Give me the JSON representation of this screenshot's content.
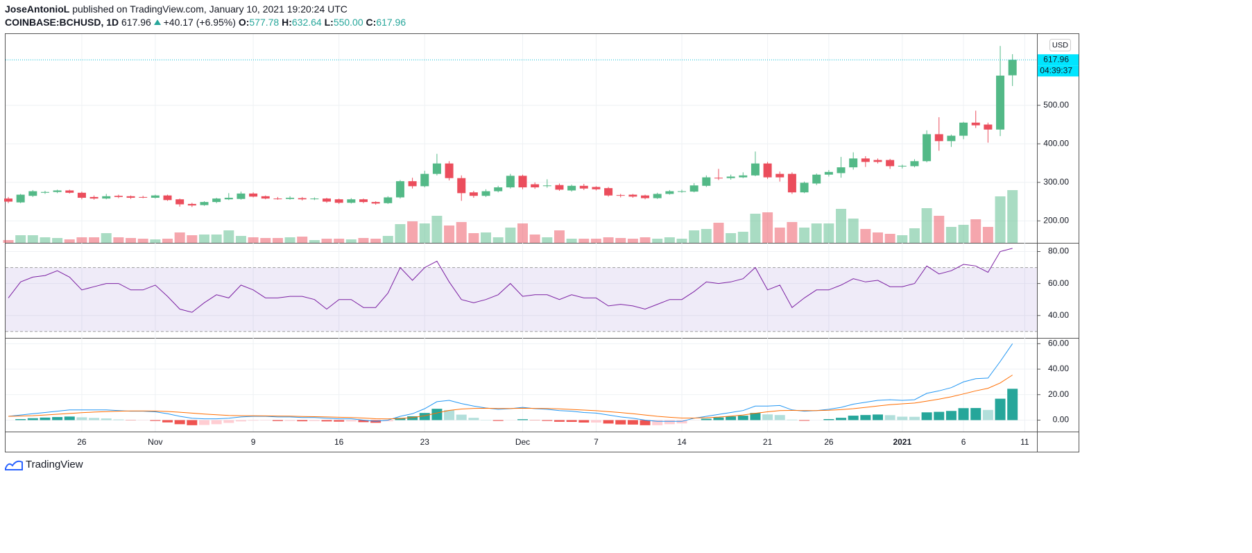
{
  "header": {
    "author": "JoseAntonioL",
    "published": "published on TradingView.com, January 10, 2021 19:20:24 UTC",
    "symbol": "COINBASE:BCHUSD, 1D",
    "last": "617.96",
    "change": "+40.17 (+6.95%)",
    "ohlc": [
      {
        "label": "O:",
        "value": "577.78"
      },
      {
        "label": "H:",
        "value": "632.64"
      },
      {
        "label": "L:",
        "value": "550.00"
      },
      {
        "label": "C:",
        "value": "617.96"
      }
    ]
  },
  "footer": "TradingView",
  "chart_data": [
    {
      "type": "candlestick",
      "currency": "USD",
      "last_label": "617.96",
      "countdown": "04:39:37",
      "up_color": "#53b987",
      "down_color": "#eb4d5c",
      "grid": true,
      "x": [
        "2020-10-20",
        "2020-10-21",
        "2020-10-22",
        "2020-10-23",
        "2020-10-24",
        "2020-10-25",
        "2020-10-26",
        "2020-10-27",
        "2020-10-28",
        "2020-10-29",
        "2020-10-30",
        "2020-10-31",
        "2020-11-01",
        "2020-11-02",
        "2020-11-03",
        "2020-11-04",
        "2020-11-05",
        "2020-11-06",
        "2020-11-07",
        "2020-11-08",
        "2020-11-09",
        "2020-11-10",
        "2020-11-11",
        "2020-11-12",
        "2020-11-13",
        "2020-11-14",
        "2020-11-15",
        "2020-11-16",
        "2020-11-17",
        "2020-11-18",
        "2020-11-19",
        "2020-11-20",
        "2020-11-21",
        "2020-11-22",
        "2020-11-23",
        "2020-11-24",
        "2020-11-25",
        "2020-11-26",
        "2020-11-27",
        "2020-11-28",
        "2020-11-29",
        "2020-11-30",
        "2020-12-01",
        "2020-12-02",
        "2020-12-03",
        "2020-12-04",
        "2020-12-05",
        "2020-12-06",
        "2020-12-07",
        "2020-12-08",
        "2020-12-09",
        "2020-12-10",
        "2020-12-11",
        "2020-12-12",
        "2020-12-13",
        "2020-12-14",
        "2020-12-15",
        "2020-12-16",
        "2020-12-17",
        "2020-12-18",
        "2020-12-19",
        "2020-12-20",
        "2020-12-21",
        "2020-12-22",
        "2020-12-23",
        "2020-12-24",
        "2020-12-25",
        "2020-12-26",
        "2020-12-27",
        "2020-12-28",
        "2020-12-29",
        "2020-12-30",
        "2020-12-31",
        "2021-01-01",
        "2021-01-02",
        "2021-01-03",
        "2021-01-04",
        "2021-01-05",
        "2021-01-06",
        "2021-01-07",
        "2021-01-08",
        "2021-01-09",
        "2021-01-10"
      ],
      "open": [
        258,
        248,
        265,
        273,
        275,
        279,
        273,
        262,
        258,
        265,
        264,
        262,
        260,
        266,
        256,
        244,
        241,
        249,
        256,
        257,
        271,
        264,
        258,
        257,
        259,
        257,
        258,
        256,
        247,
        256,
        249,
        246,
        261,
        303,
        290,
        322,
        349,
        311,
        274,
        265,
        277,
        287,
        317,
        295,
        291,
        293,
        279,
        291,
        288,
        285,
        267,
        268,
        266,
        259,
        270,
        277,
        276,
        291,
        312,
        311,
        313,
        318,
        349,
        322,
        322,
        274,
        297,
        320,
        324,
        339,
        362,
        358,
        358,
        342,
        342,
        355,
        425,
        407,
        421,
        455,
        450,
        437,
        577.78
      ],
      "high": [
        262,
        270,
        280,
        278,
        281,
        281,
        276,
        266,
        270,
        268,
        266,
        265,
        268,
        268,
        258,
        247,
        251,
        260,
        272,
        276,
        274,
        266,
        262,
        264,
        262,
        261,
        260,
        258,
        259,
        258,
        251,
        264,
        306,
        312,
        330,
        374,
        355,
        318,
        278,
        282,
        291,
        322,
        320,
        300,
        308,
        297,
        294,
        296,
        290,
        288,
        270,
        270,
        268,
        273,
        280,
        281,
        298,
        318,
        335,
        320,
        326,
        380,
        353,
        328,
        326,
        302,
        323,
        332,
        366,
        378,
        368,
        362,
        361,
        346,
        360,
        435,
        469,
        424,
        457,
        486,
        455,
        654,
        632.64
      ],
      "low": [
        246,
        246,
        262,
        270,
        272,
        271,
        256,
        255,
        256,
        259,
        257,
        259,
        258,
        252,
        237,
        236,
        239,
        246,
        254,
        255,
        261,
        256,
        255,
        255,
        253,
        254,
        247,
        244,
        245,
        246,
        242,
        244,
        258,
        284,
        287,
        318,
        305,
        252,
        260,
        262,
        274,
        284,
        282,
        283,
        286,
        278,
        276,
        280,
        279,
        263,
        261,
        260,
        256,
        257,
        268,
        273,
        274,
        288,
        306,
        307,
        311,
        316,
        309,
        302,
        270,
        272,
        293,
        315,
        312,
        333,
        340,
        349,
        335,
        336,
        339,
        352,
        382,
        392,
        412,
        441,
        403,
        420,
        550
      ],
      "close": [
        250,
        268,
        277,
        275,
        279,
        273,
        260,
        258,
        264,
        262,
        260,
        261,
        266,
        254,
        243,
        240,
        249,
        258,
        260,
        271,
        263,
        258,
        257,
        260,
        256,
        258,
        250,
        247,
        256,
        249,
        245,
        261,
        303,
        290,
        322,
        349,
        311,
        272,
        265,
        277,
        287,
        317,
        287,
        287,
        292,
        281,
        291,
        284,
        282,
        266,
        266,
        263,
        259,
        270,
        277,
        277,
        292,
        313,
        311,
        315,
        318,
        349,
        313,
        313,
        274,
        299,
        320,
        327,
        339,
        362,
        353,
        353,
        342,
        343,
        355,
        425,
        407,
        421,
        455,
        448,
        437,
        577,
        617.96
      ],
      "volume": [
        4,
        11,
        11,
        8,
        7,
        5,
        8,
        8,
        14,
        8,
        7,
        6,
        5,
        6,
        15,
        11,
        12,
        12,
        18,
        10,
        8,
        7,
        7,
        8,
        9,
        4,
        6,
        6,
        5,
        7,
        6,
        10,
        27,
        31,
        28,
        39,
        25,
        30,
        14,
        15,
        8,
        22,
        28,
        12,
        8,
        18,
        6,
        6,
        6,
        8,
        7,
        6,
        8,
        6,
        8,
        6,
        18,
        20,
        29,
        14,
        16,
        42,
        44,
        22,
        30,
        22,
        28,
        28,
        49,
        35,
        20,
        15,
        13,
        11,
        21,
        50,
        39,
        23,
        26,
        34,
        23,
        67,
        76
      ],
      "xlim": [
        "2020-10-20",
        "2021-01-12"
      ],
      "xticks": [
        {
          "value": "2020-10-26",
          "label": "26"
        },
        {
          "value": "2020-11-01",
          "label": "Nov"
        },
        {
          "value": "2020-11-09",
          "label": "9"
        },
        {
          "value": "2020-11-16",
          "label": "16"
        },
        {
          "value": "2020-11-23",
          "label": "23"
        },
        {
          "value": "2020-12-01",
          "label": "Dec"
        },
        {
          "value": "2020-12-07",
          "label": "7"
        },
        {
          "value": "2020-12-14",
          "label": "14"
        },
        {
          "value": "2020-12-21",
          "label": "21"
        },
        {
          "value": "2020-12-26",
          "label": "26"
        },
        {
          "value": "2021-01-01",
          "label": "2021"
        },
        {
          "value": "2021-01-06",
          "label": "6"
        },
        {
          "value": "2021-01-11",
          "label": "11"
        }
      ],
      "ylim": [
        143,
        685
      ],
      "yticks": [
        {
          "value": 200,
          "label": "200.00"
        },
        {
          "value": 300,
          "label": "300.00"
        },
        {
          "value": 400,
          "label": "400.00"
        },
        {
          "value": 500,
          "label": "500.00"
        }
      ]
    },
    {
      "type": "line",
      "color": "#7b1fa2",
      "band": [
        30,
        70
      ],
      "band_color": "#7e57c2",
      "grid": true,
      "values": [
        51,
        61,
        64,
        65,
        68,
        64,
        56,
        58,
        60,
        60,
        56,
        56,
        59,
        52,
        44,
        42,
        48,
        53,
        51,
        59,
        56,
        51,
        51,
        52,
        52,
        50,
        44,
        50,
        50,
        45,
        45,
        54,
        70,
        62,
        70,
        74,
        61,
        50,
        48,
        50,
        53,
        60,
        52,
        53,
        53,
        50,
        53,
        51,
        51,
        46,
        47,
        46,
        44,
        47,
        50,
        50,
        55,
        61,
        60,
        61,
        63,
        70,
        56,
        59,
        45,
        51,
        56,
        56,
        59,
        63,
        61,
        62,
        58,
        58,
        60,
        71,
        66,
        68,
        72,
        71,
        67,
        80,
        82
      ],
      "ylim": [
        26,
        85
      ],
      "yticks": [
        {
          "value": 40,
          "label": "40.00"
        },
        {
          "value": 60,
          "label": "60.00"
        },
        {
          "value": 80,
          "label": "80.00"
        }
      ]
    },
    {
      "type": "macd",
      "grid": true,
      "macd": {
        "color": "#2196f3",
        "values": [
          3,
          4,
          5,
          6,
          7,
          8,
          8,
          8,
          8,
          7.5,
          7,
          7,
          6.5,
          5,
          3,
          1.5,
          1,
          1,
          1.5,
          2.5,
          3,
          3,
          2.5,
          2.5,
          2,
          2,
          1.5,
          1,
          1,
          0,
          -1,
          0,
          3,
          5,
          9,
          14.5,
          15.5,
          13,
          11,
          9.5,
          8.5,
          9,
          10,
          9,
          8.5,
          7.5,
          7,
          6,
          5.5,
          4,
          2.5,
          1.5,
          0,
          -1,
          -1,
          -1,
          1.5,
          3,
          4.5,
          6,
          7.5,
          11,
          11,
          11.5,
          8,
          7,
          7.5,
          8.5,
          10,
          12.5,
          14,
          15.5,
          16,
          15.5,
          16,
          21,
          23,
          25.5,
          30,
          32.5,
          33,
          46,
          60
        ]
      },
      "signal": {
        "color": "#ff6d00",
        "values": [
          3,
          3.2,
          3.5,
          4,
          4.6,
          5.2,
          5.8,
          6.3,
          6.7,
          7,
          7.2,
          7.2,
          7.1,
          6.8,
          6.2,
          5.5,
          4.8,
          4.2,
          3.7,
          3.5,
          3.4,
          3.3,
          3.2,
          3.1,
          2.9,
          2.7,
          2.5,
          2.2,
          2,
          1.6,
          1.1,
          0.9,
          1.3,
          2,
          3.4,
          5.6,
          7.6,
          8.7,
          9.2,
          9.3,
          9.1,
          9.1,
          9.3,
          9.2,
          9.1,
          8.8,
          8.4,
          7.9,
          7.4,
          6.7,
          5.9,
          5,
          4,
          3,
          2.2,
          1.6,
          1.6,
          1.9,
          2.4,
          3.1,
          4,
          5.4,
          6.5,
          7.5,
          7.6,
          7.5,
          7.5,
          7.7,
          8.2,
          9,
          10,
          11.1,
          12.1,
          12.8,
          13.4,
          14.9,
          16.5,
          18.3,
          20.6,
          23,
          25,
          29.2,
          35.4
        ]
      },
      "histogram": {
        "colors": [
          "#26a69a",
          "#b2dfdb",
          "#ef5350",
          "#ffcdd2"
        ],
        "values": [
          0,
          0.8,
          1.5,
          2,
          2.4,
          2.8,
          2.2,
          1.7,
          1.3,
          0.5,
          -0.2,
          -0.2,
          -0.6,
          -1.8,
          -3.2,
          -4,
          -3.8,
          -3.2,
          -2.2,
          -1,
          -0.4,
          -0.3,
          -0.7,
          -0.6,
          -0.9,
          -0.7,
          -1,
          -1.2,
          -1,
          -1.6,
          -2.1,
          -0.9,
          1.7,
          3,
          5.6,
          8.9,
          7.9,
          4.3,
          1.8,
          0.2,
          -0.6,
          -0.1,
          0.7,
          -0.2,
          -0.6,
          -1.3,
          -1.4,
          -1.9,
          -1.9,
          -2.7,
          -3.4,
          -3.5,
          -4,
          -4,
          -3.2,
          -2.6,
          -0.1,
          1.1,
          2.1,
          2.9,
          3.5,
          5.6,
          4.5,
          4,
          0.4,
          -0.5,
          0,
          0.8,
          1.8,
          3.5,
          4,
          4.4,
          3.9,
          2.7,
          2.6,
          6.1,
          6.5,
          7.2,
          9.4,
          9.5,
          8,
          16.8,
          24.6
        ]
      },
      "ylim": [
        -9,
        64
      ],
      "yticks": [
        {
          "value": 0,
          "label": "0.00"
        },
        {
          "value": 20,
          "label": "20.00"
        },
        {
          "value": 40,
          "label": "40.00"
        },
        {
          "value": 60,
          "label": "60.00"
        }
      ]
    }
  ]
}
